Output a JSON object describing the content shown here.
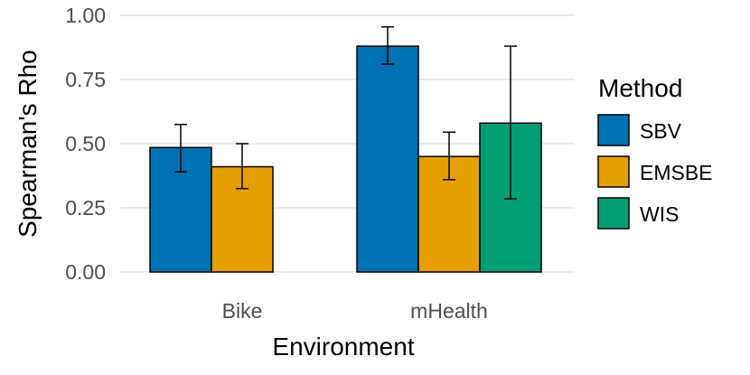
{
  "chart_data": {
    "type": "bar",
    "xlabel": "Environment",
    "ylabel": "Spearman's Rho",
    "ylim": [
      0,
      1
    ],
    "yticks": [
      "0.00",
      "0.25",
      "0.50",
      "0.75",
      "1.00"
    ],
    "categories": [
      "Bike",
      "mHealth"
    ],
    "legend_title": "Method",
    "legend_position": "right",
    "grid": true,
    "series": [
      {
        "name": "SBV",
        "color": "#0072B2",
        "values": [
          0.485,
          0.88
        ],
        "err_low": [
          0.39,
          0.81
        ],
        "err_high": [
          0.575,
          0.955
        ]
      },
      {
        "name": "EMSBE",
        "color": "#E69F00",
        "values": [
          0.41,
          0.45
        ],
        "err_low": [
          0.325,
          0.36
        ],
        "err_high": [
          0.5,
          0.545
        ]
      },
      {
        "name": "WIS",
        "color": "#009E73",
        "values": [
          0.0,
          0.58
        ],
        "err_low": [
          0.0,
          0.285
        ],
        "err_high": [
          0.0,
          0.88
        ]
      }
    ]
  }
}
